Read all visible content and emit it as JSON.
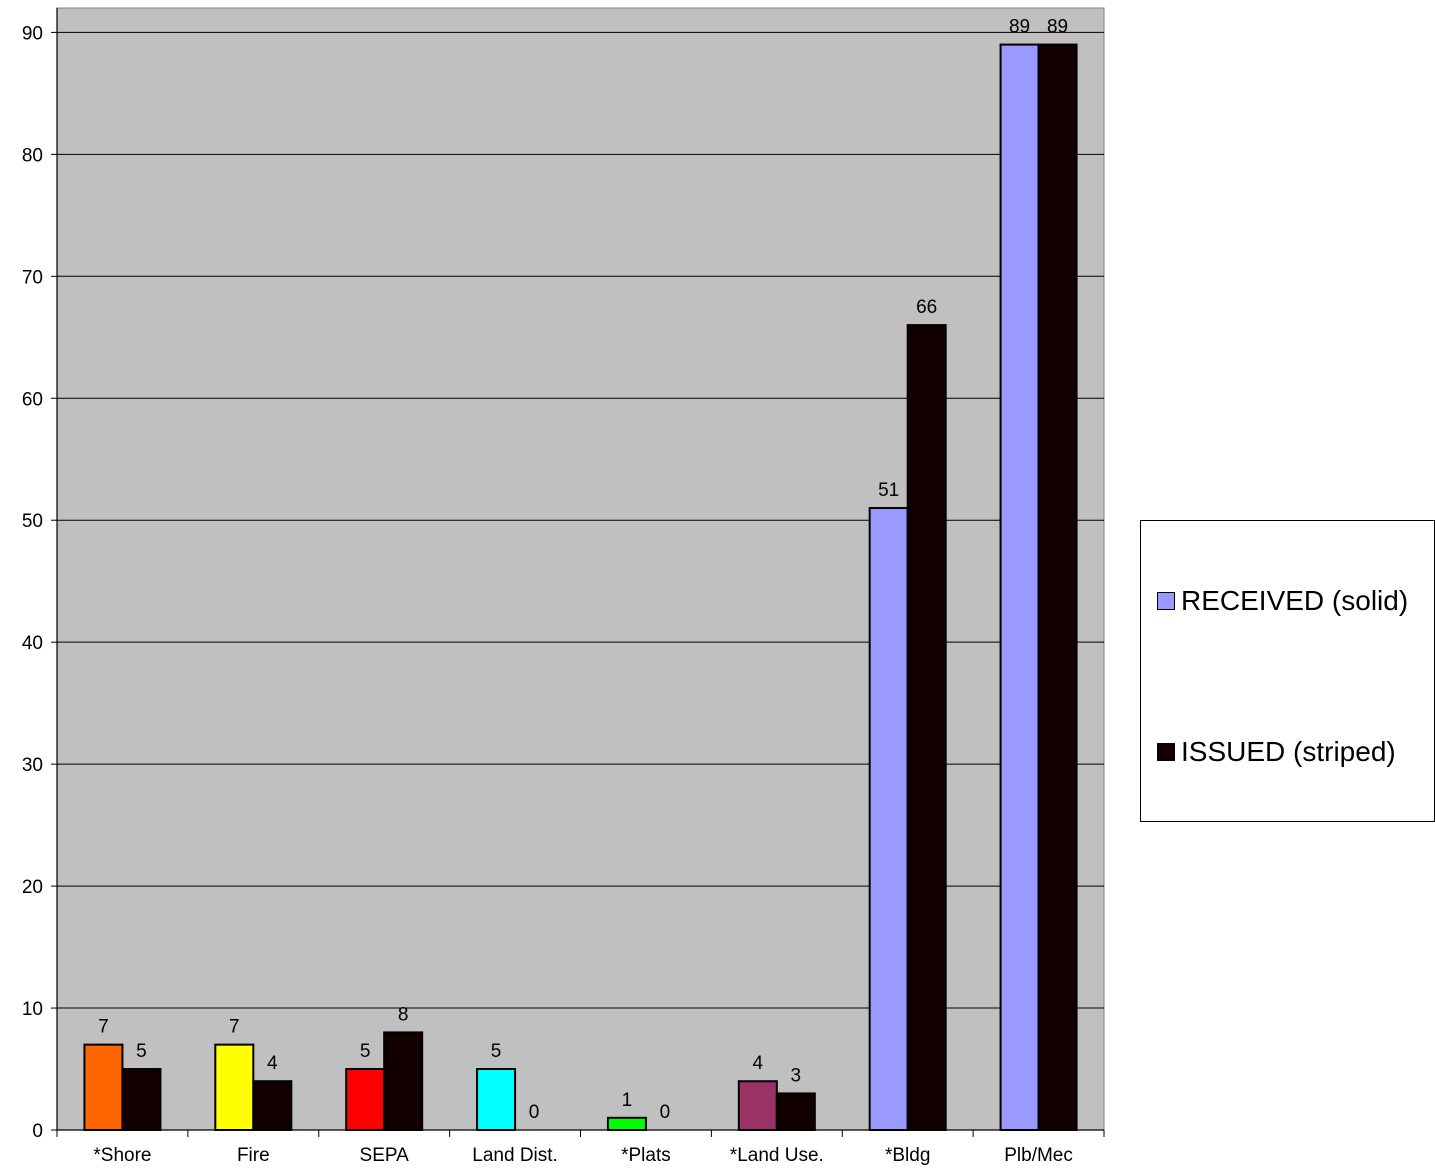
{
  "chart_data": {
    "type": "bar",
    "categories": [
      "*Shore",
      "Fire",
      "SEPA",
      "Land Dist.",
      "*Plats",
      "*Land Use.",
      "*Bldg",
      "Plb/Mec"
    ],
    "series": [
      {
        "name": "RECEIVED (solid)",
        "values": [
          7,
          7,
          5,
          5,
          1,
          4,
          51,
          89
        ],
        "colors": [
          "#ff6600",
          "#ffff00",
          "#ff0000",
          "#00ffff",
          "#00ff00",
          "#993366",
          "#9999ff",
          "#9999ff"
        ],
        "legend_color": "#9999ff"
      },
      {
        "name": "ISSUED (striped)",
        "values": [
          5,
          4,
          8,
          0,
          0,
          3,
          66,
          89
        ],
        "colors": [
          "#120000",
          "#120000",
          "#120000",
          "#120000",
          "#120000",
          "#120000",
          "#120000",
          "#120000"
        ],
        "legend_color": "#120000"
      }
    ],
    "ylim": [
      0,
      92
    ],
    "yticks": [
      0,
      10,
      20,
      30,
      40,
      50,
      60,
      70,
      80,
      90
    ],
    "ytick_labels": [
      "0",
      "10",
      "20",
      "30",
      "40",
      "50",
      "60",
      "70",
      "80",
      "90"
    ],
    "grid": true,
    "plot_background": "#c0c0c0",
    "legend_position": "right",
    "data_labels": true,
    "title": "",
    "xlabel": "",
    "ylabel": ""
  }
}
